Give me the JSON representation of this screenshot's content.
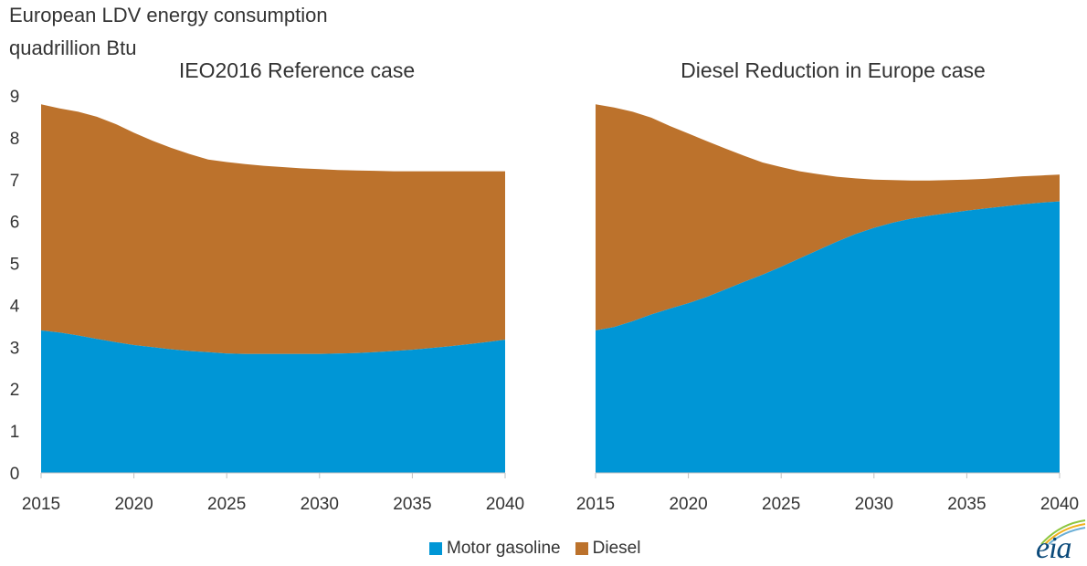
{
  "chart_data": {
    "type": "area",
    "title": "European LDV energy consumption",
    "subtitle": "quadrillion Btu",
    "ylim": [
      0,
      9
    ],
    "yticks": [
      "0",
      "1",
      "2",
      "3",
      "4",
      "5",
      "6",
      "7",
      "8",
      "9"
    ],
    "xticks": [
      "2015",
      "2020",
      "2025",
      "2030",
      "2035",
      "2040"
    ],
    "xlim": [
      2015,
      2040
    ],
    "legend": [
      {
        "name": "Motor gasoline",
        "color": "#0096d6"
      },
      {
        "name": "Diesel",
        "color": "#bc722c"
      }
    ],
    "panels": [
      {
        "title": "IEO2016 Reference case",
        "x": [
          2015,
          2016,
          2017,
          2018,
          2019,
          2020,
          2021,
          2022,
          2023,
          2024,
          2025,
          2026,
          2027,
          2028,
          2029,
          2030,
          2031,
          2032,
          2033,
          2034,
          2035,
          2036,
          2037,
          2038,
          2039,
          2040
        ],
        "series": [
          {
            "name": "Motor gasoline",
            "stack_top": [
              3.4,
              3.35,
              3.28,
              3.2,
              3.12,
              3.05,
              3.0,
              2.95,
              2.91,
              2.88,
              2.85,
              2.84,
              2.84,
              2.84,
              2.84,
              2.84,
              2.85,
              2.86,
              2.88,
              2.91,
              2.94,
              2.98,
              3.02,
              3.07,
              3.12,
              3.18
            ]
          },
          {
            "name": "Diesel",
            "stack_top": [
              8.8,
              8.7,
              8.62,
              8.5,
              8.33,
              8.12,
              7.93,
              7.76,
              7.61,
              7.48,
              7.42,
              7.37,
              7.33,
              7.3,
              7.27,
              7.25,
              7.23,
              7.22,
              7.21,
              7.2,
              7.2,
              7.2,
              7.2,
              7.2,
              7.2,
              7.2
            ]
          }
        ]
      },
      {
        "title": "Diesel Reduction in Europe case",
        "x": [
          2015,
          2016,
          2017,
          2018,
          2019,
          2020,
          2021,
          2022,
          2023,
          2024,
          2025,
          2026,
          2027,
          2028,
          2029,
          2030,
          2031,
          2032,
          2033,
          2034,
          2035,
          2036,
          2037,
          2038,
          2039,
          2040
        ],
        "series": [
          {
            "name": "Motor gasoline",
            "stack_top": [
              3.4,
              3.48,
              3.62,
              3.78,
              3.92,
              4.05,
              4.2,
              4.38,
              4.56,
              4.73,
              4.92,
              5.12,
              5.32,
              5.52,
              5.7,
              5.85,
              5.97,
              6.07,
              6.14,
              6.2,
              6.26,
              6.31,
              6.36,
              6.41,
              6.45,
              6.48
            ]
          },
          {
            "name": "Diesel",
            "stack_top": [
              8.8,
              8.72,
              8.62,
              8.48,
              8.28,
              8.1,
              7.92,
              7.74,
              7.57,
              7.41,
              7.3,
              7.2,
              7.13,
              7.07,
              7.03,
              7.0,
              6.99,
              6.98,
              6.98,
              6.99,
              7.0,
              7.02,
              7.05,
              7.08,
              7.1,
              7.12
            ]
          }
        ]
      }
    ]
  },
  "logo": {
    "text": "eia"
  }
}
